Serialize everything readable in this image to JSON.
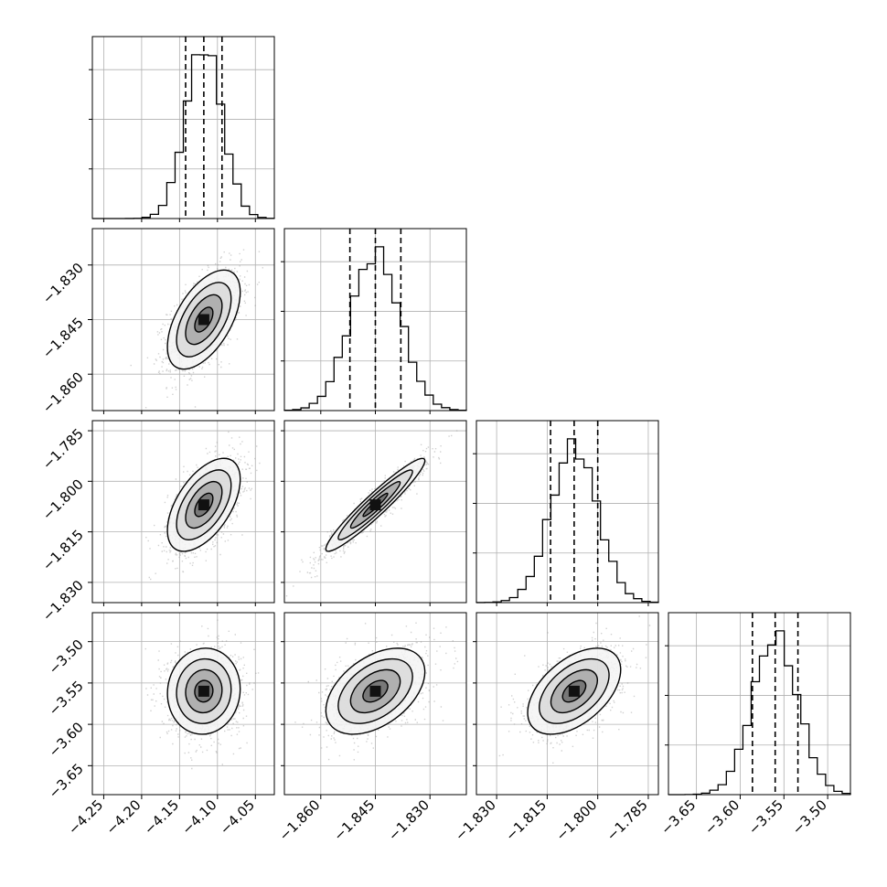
{
  "chart_data": {
    "type": "corner",
    "grid": true,
    "parameters": [
      {
        "xlim": [
          -4.265,
          -4.025
        ],
        "ylim": [
          -3.685,
          -3.465
        ],
        "ticks": [
          -4.25,
          -4.2,
          -4.15,
          -4.1,
          -4.05
        ],
        "tick_labels": [
          "−4.25",
          "−4.20",
          "−4.15",
          "−4.10",
          "−4.05"
        ],
        "mean": -4.118,
        "sigma": 0.024,
        "quantiles": [
          -4.142,
          -4.118,
          -4.094
        ]
      },
      {
        "xlim": [
          -1.87,
          -1.82
        ],
        "ylim": [
          -1.87,
          -1.82
        ],
        "ticks": [
          -1.86,
          -1.845,
          -1.83
        ],
        "tick_labels": [
          "−1.860",
          "−1.845",
          "−1.830"
        ],
        "mean": -1.845,
        "sigma": 0.0068,
        "quantiles": [
          -1.852,
          -1.845,
          -1.838
        ]
      },
      {
        "xlim": [
          -1.836,
          -1.782
        ],
        "ylim": [
          -1.836,
          -1.782
        ],
        "ticks": [
          -1.83,
          -1.815,
          -1.8,
          -1.785
        ],
        "tick_labels": [
          "−1.830",
          "−1.815",
          "−1.800",
          "−1.785"
        ],
        "mean": -1.807,
        "sigma": 0.0069,
        "quantiles": [
          -1.814,
          -1.807,
          -1.8
        ]
      },
      {
        "xlim": [
          -3.682,
          -3.474
        ],
        "ylim": [
          -3.685,
          -3.465
        ],
        "ticks": [
          -3.65,
          -3.6,
          -3.55,
          -3.5
        ],
        "tick_labels": [
          "−3.65",
          "−3.60",
          "−3.55",
          "−3.50"
        ],
        "mean": -3.56,
        "sigma": 0.026,
        "quantiles": [
          -3.586,
          -3.56,
          -3.534
        ]
      }
    ],
    "correlations": {
      "1_0": 0.55,
      "2_0": 0.55,
      "2_1": 0.95,
      "3_0": 0.05,
      "3_1": 0.45,
      "3_2": 0.5
    }
  }
}
